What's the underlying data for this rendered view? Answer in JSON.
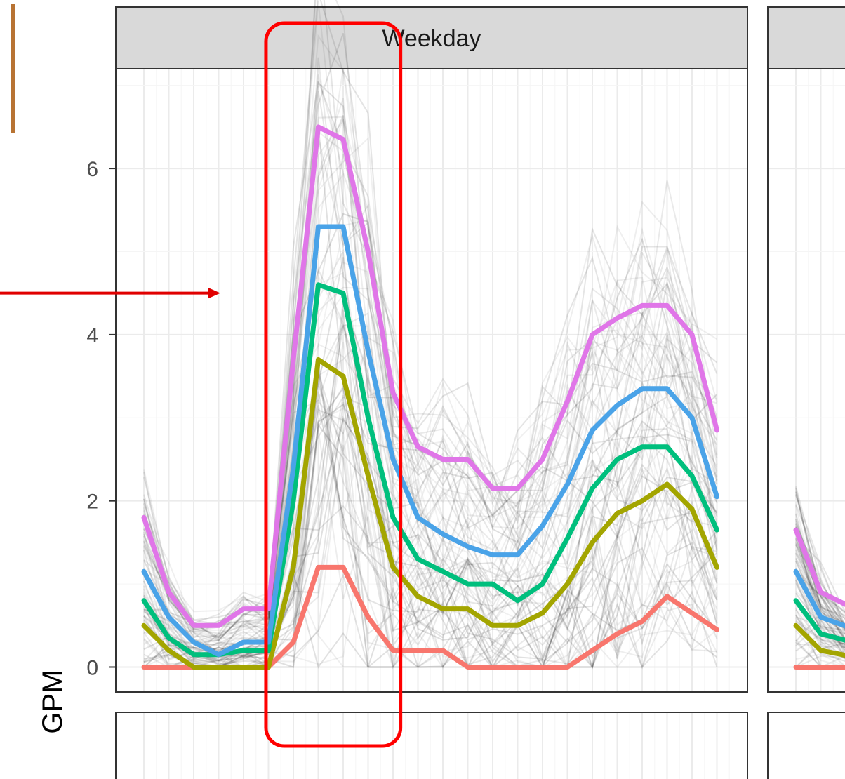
{
  "chart_data": {
    "type": "line",
    "panels": [
      {
        "strip_label": "Weekday"
      },
      {
        "strip_label": ""
      }
    ],
    "ylabel": "GPM",
    "xlabel": "",
    "yticks": [
      0,
      2,
      4,
      6
    ],
    "ylim": [
      -0.3,
      7.2
    ],
    "x": [
      0,
      1,
      2,
      3,
      4,
      5,
      6,
      7,
      8,
      9,
      10,
      11,
      12,
      13,
      14,
      15,
      16,
      17,
      18,
      19,
      20,
      21,
      22,
      23
    ],
    "grid": true,
    "legend": "none",
    "series": [
      {
        "color": "#F8766D",
        "values": [
          0.0,
          0.0,
          0.0,
          0.0,
          0.0,
          0.0,
          0.3,
          1.2,
          1.2,
          0.6,
          0.2,
          0.2,
          0.2,
          0.0,
          0.0,
          0.0,
          0.0,
          0.0,
          0.2,
          0.4,
          0.55,
          0.85,
          0.65,
          0.45
        ]
      },
      {
        "color": "#A3A500",
        "values": [
          0.5,
          0.2,
          0.0,
          0.0,
          0.0,
          0.0,
          1.2,
          3.7,
          3.5,
          2.3,
          1.2,
          0.85,
          0.7,
          0.7,
          0.5,
          0.5,
          0.65,
          1.0,
          1.5,
          1.85,
          2.0,
          2.2,
          1.9,
          1.2
        ]
      },
      {
        "color": "#00BF7D",
        "values": [
          0.8,
          0.35,
          0.15,
          0.15,
          0.2,
          0.2,
          2.0,
          4.6,
          4.5,
          3.0,
          1.8,
          1.3,
          1.15,
          1.0,
          1.0,
          0.8,
          1.0,
          1.55,
          2.15,
          2.5,
          2.65,
          2.65,
          2.3,
          1.65
        ]
      },
      {
        "color": "#4AA3E8",
        "values": [
          1.15,
          0.6,
          0.3,
          0.15,
          0.3,
          0.3,
          2.4,
          5.3,
          5.3,
          3.8,
          2.5,
          1.8,
          1.6,
          1.45,
          1.35,
          1.35,
          1.7,
          2.2,
          2.85,
          3.15,
          3.35,
          3.35,
          3.0,
          2.05
        ]
      },
      {
        "color": "#E076E8",
        "values": [
          1.8,
          0.9,
          0.5,
          0.5,
          0.7,
          0.7,
          3.7,
          6.5,
          6.35,
          5.0,
          3.3,
          2.65,
          2.5,
          2.5,
          2.15,
          2.15,
          2.5,
          3.2,
          4.0,
          4.2,
          4.35,
          4.35,
          4.0,
          2.85
        ]
      }
    ],
    "second_panel_visible_values": [
      {
        "color": "#F8766D",
        "values": [
          0.0,
          0.0
        ]
      },
      {
        "color": "#A3A500",
        "values": [
          0.5,
          0.2
        ]
      },
      {
        "color": "#00BF7D",
        "values": [
          0.8,
          0.4
        ]
      },
      {
        "color": "#4AA3E8",
        "values": [
          1.15,
          0.6
        ]
      },
      {
        "color": "#E076E8",
        "values": [
          1.65,
          0.9
        ]
      }
    ],
    "colors": {
      "panel_border": "#333333",
      "strip_fill": "#D9D9D9",
      "grid_major": "#EBEBEB",
      "grid_minor": "#F5F5F5",
      "highlight_box": "#FF0000",
      "arrow": "#E00000",
      "accent_bar": "#B87333"
    },
    "annotations": [
      {
        "kind": "rounded-rectangle",
        "color": "#FF0000",
        "around_x": [
          6,
          9
        ]
      },
      {
        "kind": "arrow",
        "color": "#E00000",
        "direction": "right",
        "at_y": 4.5
      }
    ]
  }
}
